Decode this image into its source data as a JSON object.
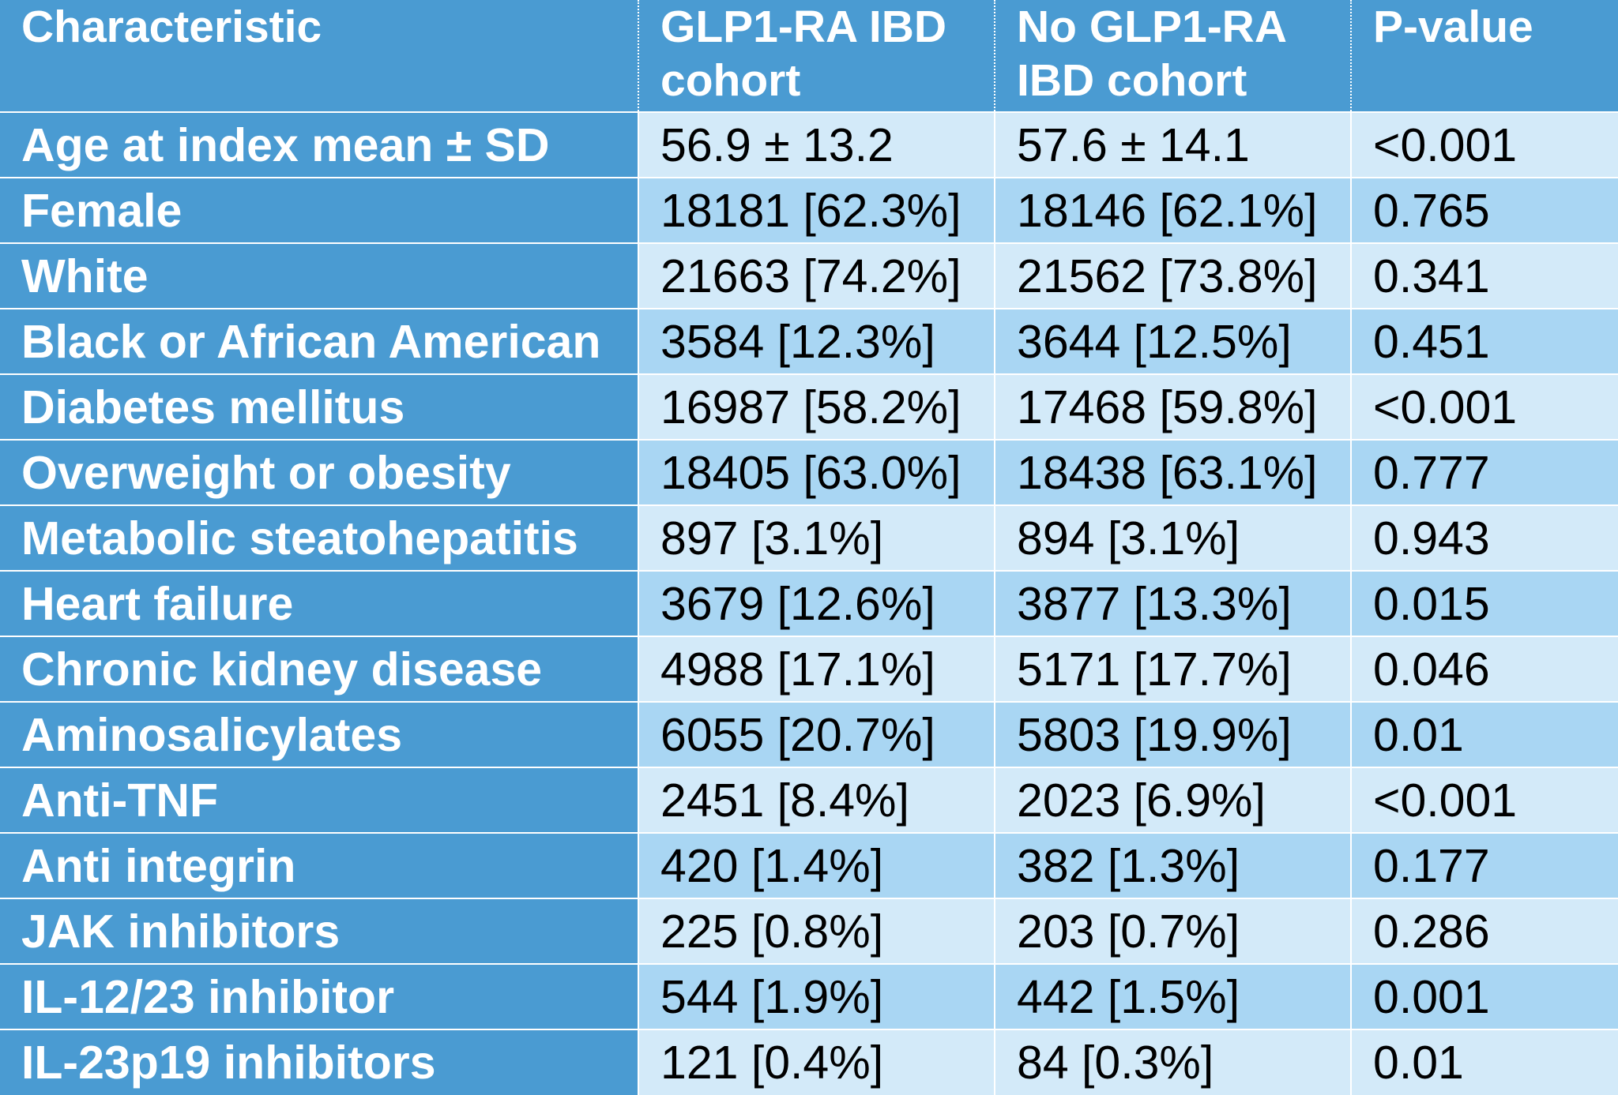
{
  "colors": {
    "header_bg": "#4a9bd2",
    "label_bg": "#4a9bd2",
    "row_light": "#d3eaf9",
    "row_mid": "#a9d6f3",
    "header_text": "#ffffff",
    "value_text": "#000000"
  },
  "table": {
    "headers": [
      "Characteristic",
      "GLP1-RA IBD cohort",
      "No GLP1-RA IBD cohort",
      "P-value"
    ],
    "rows": [
      [
        "Age at index mean ± SD",
        "56.9 ± 13.2",
        "57.6 ± 14.1",
        "<0.001"
      ],
      [
        "Female",
        "18181 [62.3%]",
        "18146 [62.1%]",
        "0.765"
      ],
      [
        "White",
        "21663 [74.2%]",
        "21562 [73.8%]",
        "0.341"
      ],
      [
        "Black or African American",
        "3584 [12.3%]",
        "3644 [12.5%]",
        "0.451"
      ],
      [
        "Diabetes mellitus",
        "16987 [58.2%]",
        "17468 [59.8%]",
        "<0.001"
      ],
      [
        "Overweight or obesity",
        "18405 [63.0%]",
        "18438 [63.1%]",
        "0.777"
      ],
      [
        "Metabolic steatohepatitis",
        "897 [3.1%]",
        "894 [3.1%]",
        "0.943"
      ],
      [
        "Heart failure",
        "3679 [12.6%]",
        "3877 [13.3%]",
        "0.015"
      ],
      [
        "Chronic kidney disease",
        "4988 [17.1%]",
        "5171 [17.7%]",
        "0.046"
      ],
      [
        "Aminosalicylates",
        "6055 [20.7%]",
        "5803 [19.9%]",
        "0.01"
      ],
      [
        "Anti-TNF",
        "2451 [8.4%]",
        "2023 [6.9%]",
        "<0.001"
      ],
      [
        "Anti integrin",
        "420 [1.4%]",
        "382 [1.3%]",
        "0.177"
      ],
      [
        "JAK inhibitors",
        "225 [0.8%]",
        "203 [0.7%]",
        "0.286"
      ],
      [
        "IL-12/23 inhibitor",
        "544 [1.9%]",
        "442 [1.5%]",
        "0.001"
      ],
      [
        "IL-23p19 inhibitors",
        "121 [0.4%]",
        "84 [0.3%]",
        "0.01"
      ]
    ]
  }
}
